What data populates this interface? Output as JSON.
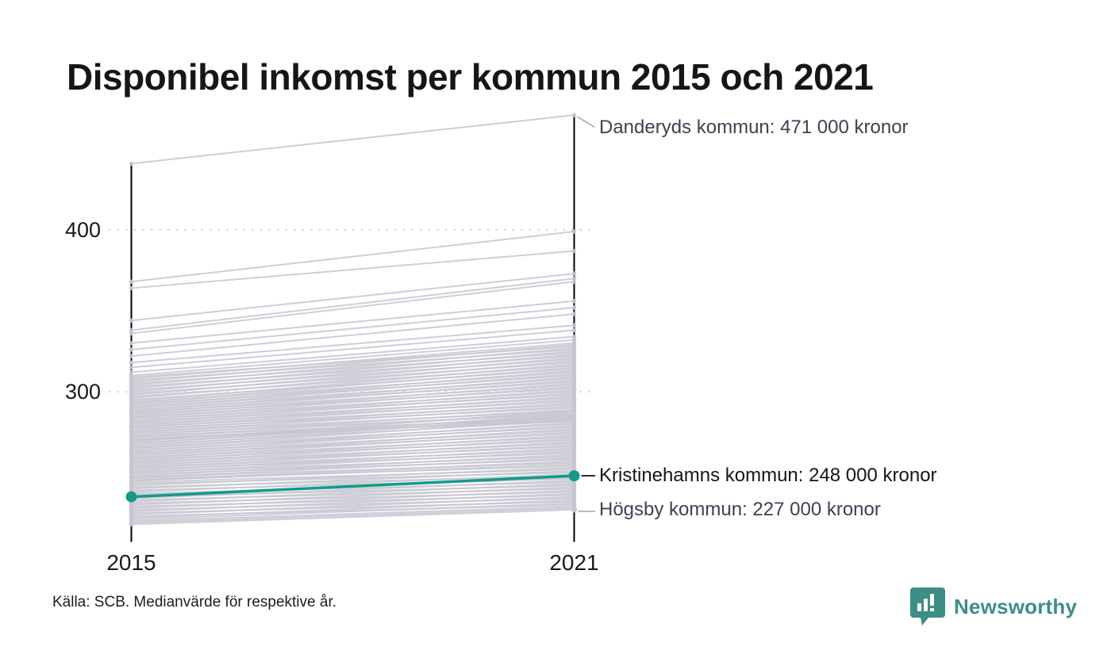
{
  "title": "Disponibel inkomst per kommun 2015 och 2021",
  "source_note": "Källa: SCB. Medianvärde för respektive år.",
  "branding": {
    "logo_text": "Newsworthy",
    "logo_icon": "bar-chart-speech-bubble-icon",
    "logo_color": "#3d8e86"
  },
  "colors": {
    "accent": "#149a8a",
    "line_gray": "#c7c5d1",
    "grid_dot": "#d6d5da",
    "axis_black": "#000000",
    "text_dark": "#15161d",
    "text_muted": "#3d4251",
    "leader_gray": "#a9a7b5",
    "leader_dark": "#1d1d27"
  },
  "chart_data": {
    "type": "line",
    "subtype": "slope-chart",
    "title": "Disponibel inkomst per kommun 2015 och 2021",
    "x_categories": [
      "2015",
      "2021"
    ],
    "y_ticks": [
      {
        "label": "400",
        "value": 400
      },
      {
        "label": "300",
        "value": 300
      }
    ],
    "values_are": "thousands of kronor (median disposable income per municipality)",
    "grid": "dotted horizontal lines at ticks",
    "legend": "none",
    "named_lines": [
      {
        "name": "Danderyds kommun",
        "values": [
          441,
          471
        ],
        "highlight": false
      },
      {
        "name": "Kristinehamns kommun",
        "values": [
          235,
          248
        ],
        "highlight": true
      },
      {
        "name": "Högsby kommun",
        "values": [
          218,
          227
        ],
        "highlight": false
      }
    ],
    "annotations": [
      {
        "id": "danderyd",
        "label": "Danderyds kommun: 471 000 kronor",
        "value": 471,
        "style": "muted",
        "leader": "diagonal"
      },
      {
        "id": "kristinehamn",
        "label": "Kristinehamns kommun: 248 000 kronor",
        "value": 248,
        "style": "strong",
        "leader": "horizontal-dark"
      },
      {
        "id": "hogsby",
        "label": "Högsby kommun: 227 000 kronor",
        "value": 227,
        "style": "muted",
        "leader": "horizontal-gray"
      }
    ],
    "background_lines": [
      [
        368,
        399
      ],
      [
        364,
        387
      ],
      [
        344,
        373
      ],
      [
        338,
        370
      ],
      [
        336,
        368
      ],
      [
        330,
        356
      ],
      [
        326,
        352
      ],
      [
        322,
        348
      ],
      [
        318,
        341
      ],
      [
        315,
        338
      ],
      [
        312,
        334
      ],
      [
        310,
        332
      ],
      [
        309,
        328
      ],
      [
        308,
        330
      ],
      [
        307,
        326
      ],
      [
        306,
        329
      ],
      [
        305,
        324
      ],
      [
        304,
        327
      ],
      [
        303,
        322
      ],
      [
        302,
        325
      ],
      [
        301,
        320
      ],
      [
        300,
        323
      ],
      [
        299,
        318
      ],
      [
        298,
        321
      ],
      [
        297,
        316
      ],
      [
        296,
        319
      ],
      [
        295,
        314
      ],
      [
        294,
        317
      ],
      [
        293,
        312
      ],
      [
        293,
        315
      ],
      [
        292,
        310
      ],
      [
        291,
        313
      ],
      [
        290,
        308
      ],
      [
        290,
        311
      ],
      [
        289,
        306
      ],
      [
        288,
        309
      ],
      [
        287,
        304
      ],
      [
        287,
        307
      ],
      [
        286,
        302
      ],
      [
        285,
        305
      ],
      [
        284,
        300
      ],
      [
        284,
        303
      ],
      [
        283,
        298
      ],
      [
        282,
        301
      ],
      [
        281,
        296
      ],
      [
        281,
        299
      ],
      [
        280,
        294
      ],
      [
        279,
        297
      ],
      [
        278,
        292
      ],
      [
        278,
        295
      ],
      [
        277,
        290
      ],
      [
        276,
        293
      ],
      [
        275,
        288
      ],
      [
        275,
        291
      ],
      [
        274,
        286
      ],
      [
        273,
        289
      ],
      [
        272,
        284
      ],
      [
        272,
        287
      ],
      [
        271,
        282
      ],
      [
        270,
        285
      ],
      [
        270,
        283
      ],
      [
        269,
        288
      ],
      [
        268,
        284
      ],
      [
        268,
        286
      ],
      [
        267,
        282
      ],
      [
        266,
        285
      ],
      [
        265,
        280
      ],
      [
        265,
        283
      ],
      [
        264,
        278
      ],
      [
        263,
        281
      ],
      [
        262,
        276
      ],
      [
        262,
        279
      ],
      [
        261,
        274
      ],
      [
        260,
        277
      ],
      [
        259,
        272
      ],
      [
        259,
        275
      ],
      [
        258,
        270
      ],
      [
        257,
        273
      ],
      [
        256,
        268
      ],
      [
        256,
        271
      ],
      [
        255,
        266
      ],
      [
        254,
        269
      ],
      [
        253,
        264
      ],
      [
        253,
        267
      ],
      [
        252,
        262
      ],
      [
        251,
        265
      ],
      [
        250,
        260
      ],
      [
        250,
        263
      ],
      [
        249,
        258
      ],
      [
        248,
        261
      ],
      [
        247,
        256
      ],
      [
        247,
        259
      ],
      [
        246,
        254
      ],
      [
        245,
        257
      ],
      [
        245,
        255
      ],
      [
        244,
        252
      ],
      [
        243,
        250
      ],
      [
        242,
        253
      ],
      [
        241,
        248
      ],
      [
        240,
        251
      ],
      [
        239,
        246
      ],
      [
        238,
        249
      ],
      [
        237,
        244
      ],
      [
        236,
        247
      ],
      [
        235,
        242
      ],
      [
        234,
        245
      ],
      [
        233,
        240
      ],
      [
        232,
        243
      ],
      [
        231,
        238
      ],
      [
        230,
        241
      ],
      [
        229,
        236
      ],
      [
        228,
        239
      ],
      [
        227,
        234
      ],
      [
        226,
        237
      ],
      [
        225,
        232
      ],
      [
        224,
        235
      ],
      [
        223,
        230
      ],
      [
        222,
        233
      ],
      [
        221,
        231
      ],
      [
        220,
        229
      ],
      [
        219,
        228
      ]
    ]
  }
}
